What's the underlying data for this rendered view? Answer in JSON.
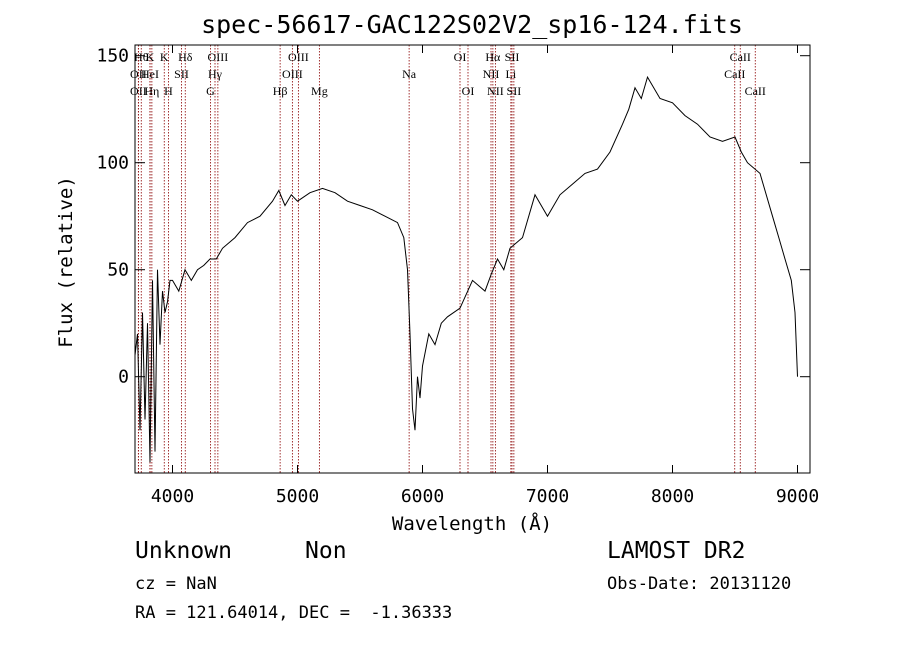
{
  "chart_data": {
    "type": "line",
    "title": "spec-56617-GAC122S02V2_sp16-124.fits",
    "xlabel": "Wavelength (Å)",
    "ylabel": "Flux (relative)",
    "xlim": [
      3700,
      9100
    ],
    "ylim": [
      -45,
      155
    ],
    "x_ticks": [
      4000,
      5000,
      6000,
      7000,
      8000,
      9000
    ],
    "y_ticks": [
      0,
      50,
      100,
      150
    ],
    "grid": false,
    "line_color": "#000000",
    "marker_color": "#8b0000",
    "series": [
      {
        "x": [
          3700,
          3720,
          3740,
          3760,
          3780,
          3800,
          3820,
          3840,
          3860,
          3880,
          3900,
          3920,
          3940,
          3960,
          3980,
          4000,
          4050,
          4100,
          4150,
          4200,
          4250,
          4300,
          4350,
          4400,
          4500,
          4600,
          4700,
          4800,
          4850,
          4900,
          4950,
          5000,
          5100,
          5200,
          5300,
          5400,
          5500,
          5600,
          5700,
          5800,
          5850,
          5880,
          5900,
          5920,
          5940,
          5960,
          5980,
          6000,
          6050,
          6100,
          6150,
          6200,
          6300,
          6400,
          6500,
          6550,
          6600,
          6650,
          6700,
          6800,
          6900,
          7000,
          7100,
          7200,
          7300,
          7400,
          7500,
          7600,
          7650,
          7700,
          7750,
          7800,
          7900,
          8000,
          8100,
          8200,
          8300,
          8400,
          8500,
          8550,
          8600,
          8700,
          8800,
          8850,
          8900,
          8950,
          8980,
          9000
        ],
        "y": [
          10,
          20,
          -25,
          30,
          -20,
          25,
          -40,
          45,
          -35,
          50,
          15,
          40,
          30,
          35,
          45,
          45,
          40,
          50,
          45,
          50,
          52,
          55,
          55,
          60,
          65,
          72,
          75,
          82,
          87,
          80,
          85,
          82,
          86,
          88,
          86,
          82,
          80,
          78,
          75,
          72,
          65,
          50,
          20,
          -15,
          -25,
          0,
          -10,
          5,
          20,
          15,
          25,
          28,
          32,
          45,
          40,
          48,
          55,
          50,
          60,
          65,
          85,
          75,
          85,
          90,
          95,
          97,
          105,
          118,
          125,
          135,
          130,
          140,
          130,
          128,
          122,
          118,
          112,
          110,
          112,
          105,
          100,
          95,
          75,
          65,
          55,
          45,
          30,
          0
        ]
      }
    ],
    "line_markers": [
      {
        "wave": 3750,
        "label": "Hθ",
        "row": 0
      },
      {
        "wave": 3727,
        "label": "OII",
        "row": 1
      },
      {
        "wave": 3727,
        "label": "OII",
        "row": 2
      },
      {
        "wave": 3820,
        "label": "K",
        "row": 0
      },
      {
        "wave": 3820,
        "label": "HeI",
        "row": 1
      },
      {
        "wave": 3835,
        "label": "Hη",
        "row": 2
      },
      {
        "wave": 3934,
        "label": "K",
        "row": 0
      },
      {
        "wave": 3968,
        "label": "H",
        "row": 2
      },
      {
        "wave": 4072,
        "label": "SII",
        "row": 1
      },
      {
        "wave": 4102,
        "label": "Hδ",
        "row": 0
      },
      {
        "wave": 4304,
        "label": "G",
        "row": 2
      },
      {
        "wave": 4340,
        "label": "Hγ",
        "row": 1
      },
      {
        "wave": 4363,
        "label": "OIII",
        "row": 0
      },
      {
        "wave": 4861,
        "label": "Hβ",
        "row": 2
      },
      {
        "wave": 4959,
        "label": "OIII",
        "row": 1
      },
      {
        "wave": 5007,
        "label": "OIII",
        "row": 0
      },
      {
        "wave": 5175,
        "label": "Mg",
        "row": 2
      },
      {
        "wave": 5893,
        "label": "Na",
        "row": 1
      },
      {
        "wave": 6300,
        "label": "OI",
        "row": 0
      },
      {
        "wave": 6364,
        "label": "OI",
        "row": 2
      },
      {
        "wave": 6548,
        "label": "NII",
        "row": 1
      },
      {
        "wave": 6563,
        "label": "Hα",
        "row": 0
      },
      {
        "wave": 6583,
        "label": "NII",
        "row": 2
      },
      {
        "wave": 6707,
        "label": "Li",
        "row": 1
      },
      {
        "wave": 6716,
        "label": "SII",
        "row": 0
      },
      {
        "wave": 6731,
        "label": "SII",
        "row": 2
      },
      {
        "wave": 8498,
        "label": "CaII",
        "row": 1
      },
      {
        "wave": 8542,
        "label": "CaII",
        "row": 0
      },
      {
        "wave": 8662,
        "label": "CaII",
        "row": 2
      }
    ]
  },
  "info": {
    "class_label": "Unknown",
    "subclass_label": "Non",
    "survey": "LAMOST DR2",
    "cz_line": "cz = NaN",
    "obs_date_line": "Obs-Date: 20131120",
    "coords_line": "RA = 121.64014, DEC =  -1.36333"
  }
}
